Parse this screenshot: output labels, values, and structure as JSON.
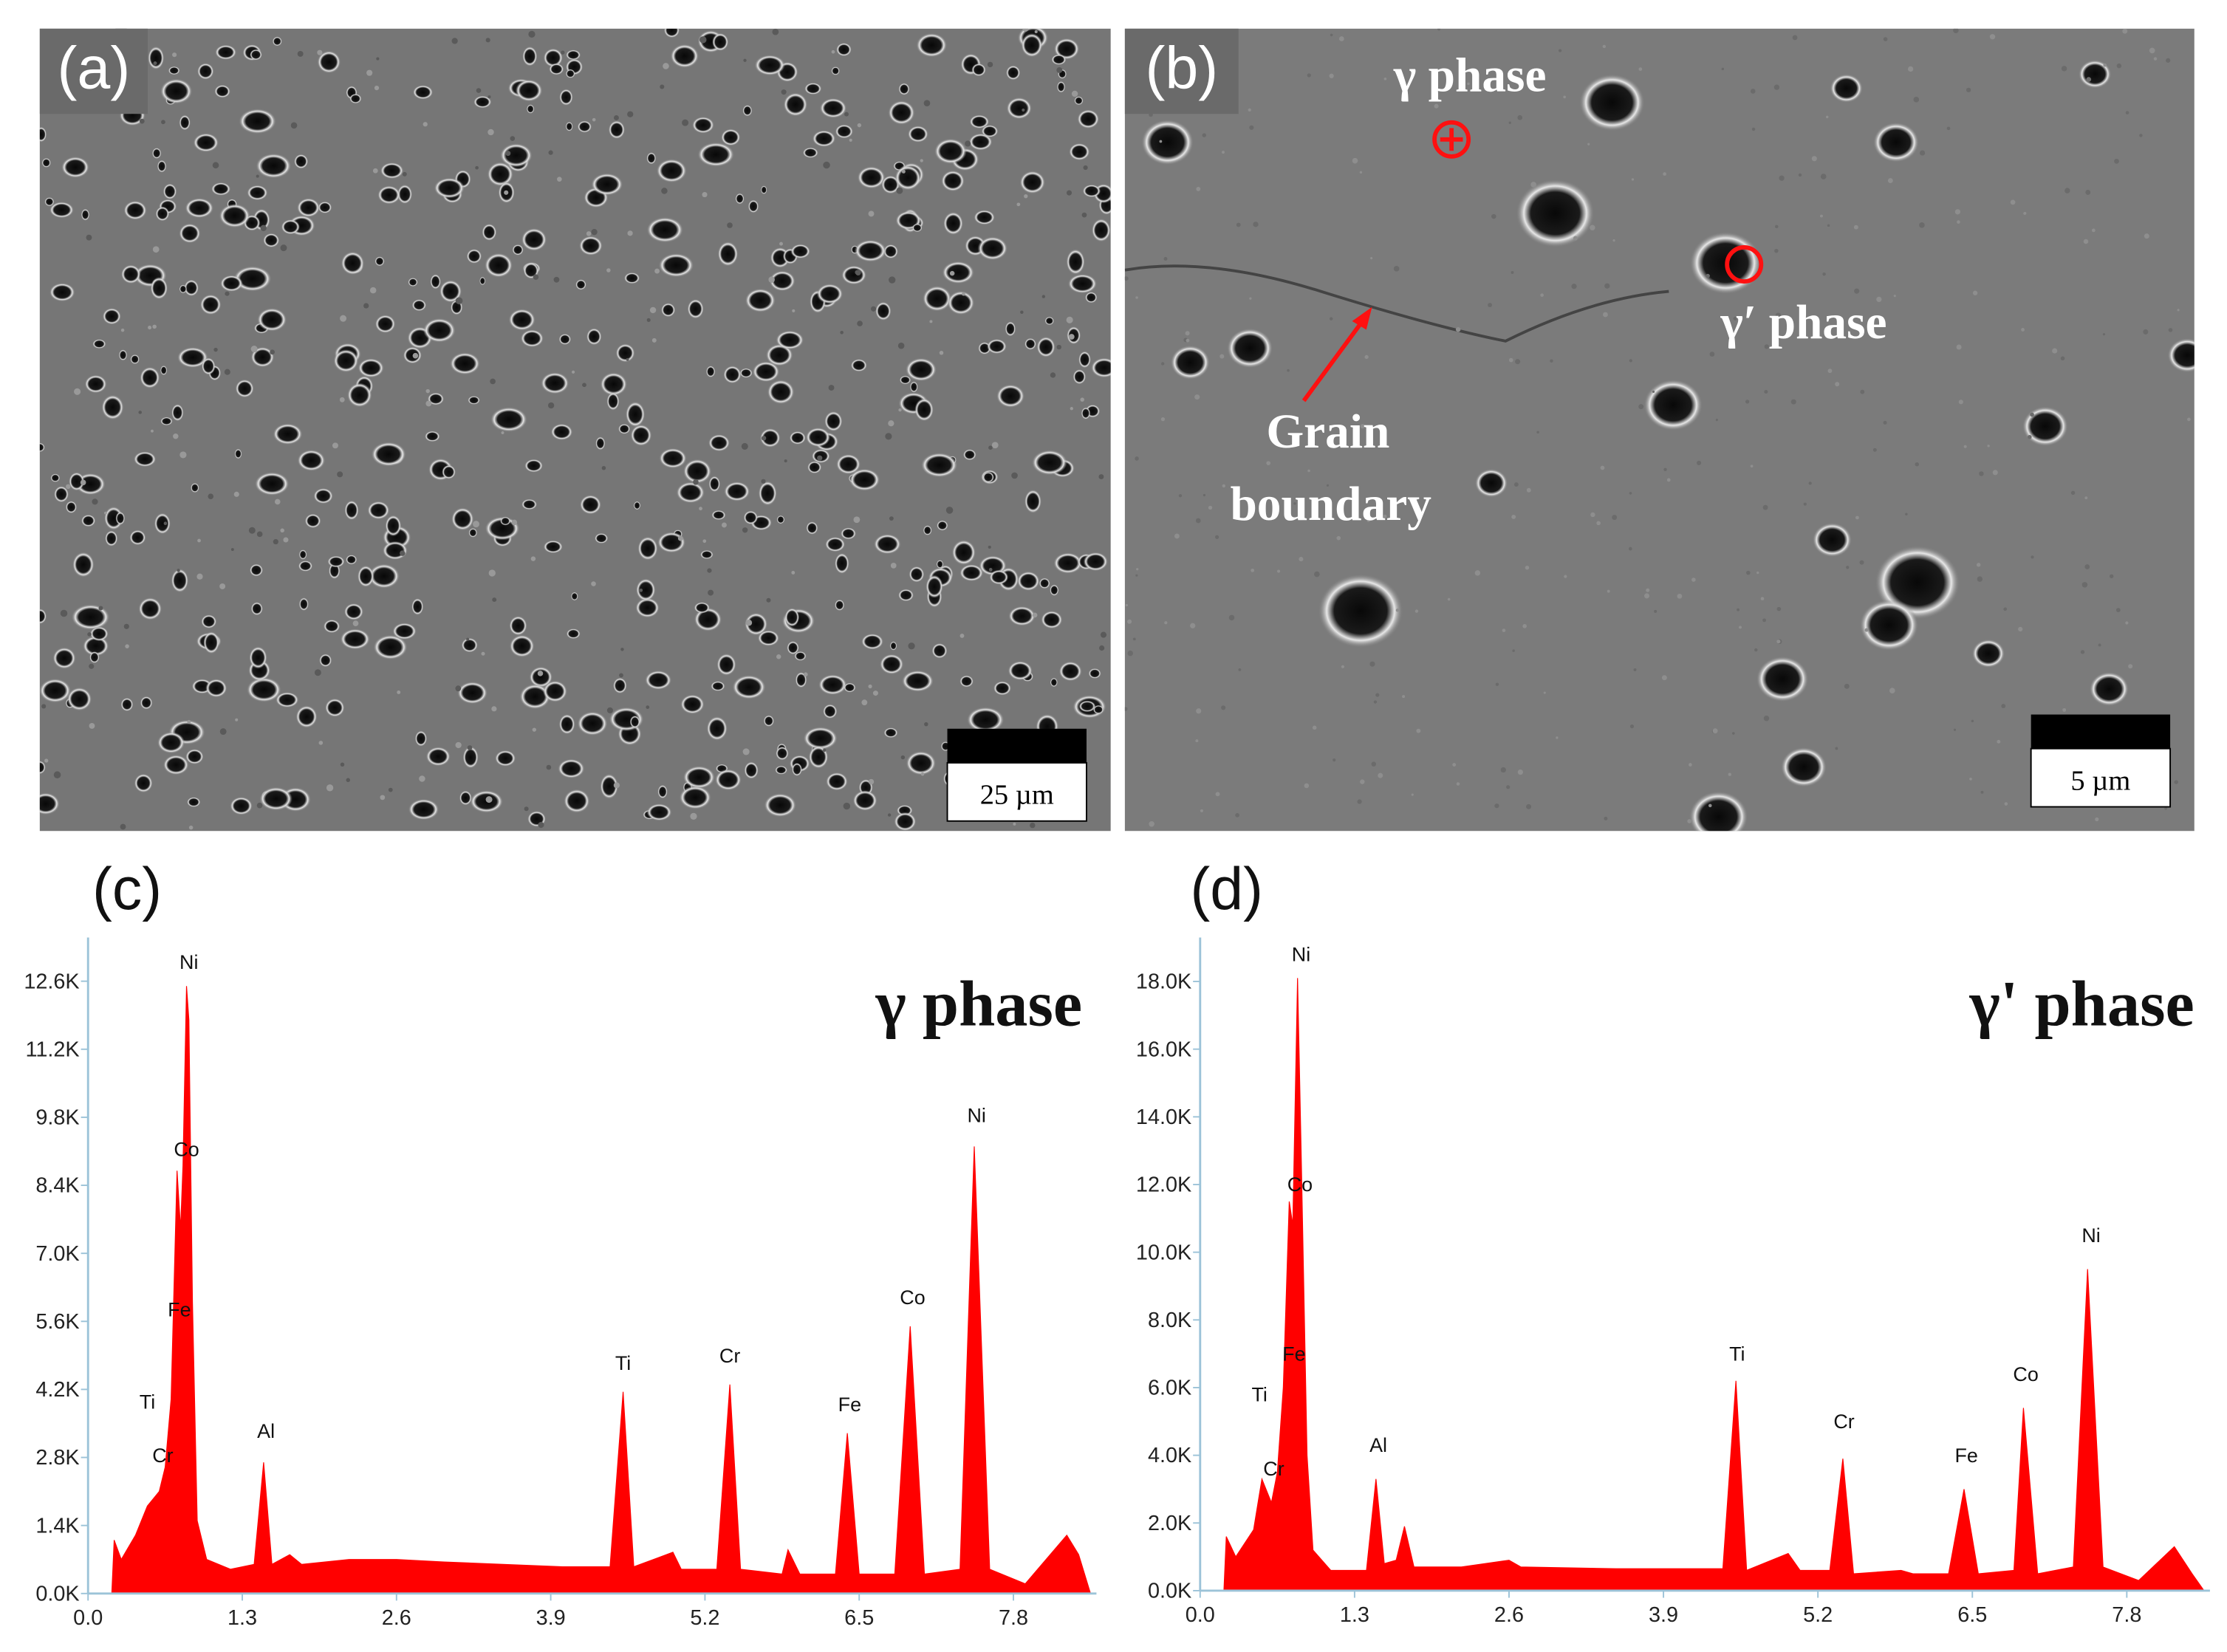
{
  "images": [
    {
      "label": "(a)",
      "scale_bar": "25 µm"
    },
    {
      "label": "(b)",
      "scale_bar": "5 µm",
      "phase_labels": [
        "γ  phase",
        "γ′  phase"
      ],
      "boundary_label": [
        "Grain",
        "boundary"
      ]
    }
  ],
  "chart_data": [
    {
      "type": "area",
      "panel_label": "(c)",
      "title": "γ  phase",
      "color": "#ff0000",
      "x": [
        0.2,
        0.22,
        0.28,
        0.4,
        0.5,
        0.6,
        0.65,
        0.7,
        0.75,
        0.78,
        0.8,
        0.83,
        0.85,
        0.88,
        0.92,
        1.0,
        1.2,
        1.4,
        1.48,
        1.55,
        1.7,
        1.8,
        2.2,
        2.6,
        3.0,
        3.5,
        4.0,
        4.4,
        4.51,
        4.6,
        4.93,
        5.0,
        5.3,
        5.41,
        5.5,
        5.85,
        5.9,
        6.0,
        6.3,
        6.4,
        6.5,
        6.8,
        6.93,
        7.05,
        7.35,
        7.47,
        7.6,
        7.9,
        8.25,
        8.35,
        8.45
      ],
      "values": [
        0,
        1100,
        700,
        1200,
        1800,
        2100,
        2600,
        4000,
        8700,
        7500,
        8800,
        12500,
        11800,
        6000,
        1500,
        700,
        500,
        600,
        2700,
        600,
        800,
        600,
        700,
        700,
        650,
        600,
        550,
        550,
        4150,
        550,
        850,
        500,
        500,
        4300,
        500,
        400,
        900,
        400,
        400,
        3300,
        400,
        400,
        5500,
        400,
        500,
        9200,
        500,
        200,
        1200,
        800,
        0
      ],
      "xlim": [
        0,
        8.5
      ],
      "xticks": [
        {
          "value": 0,
          "label": "0.0"
        },
        1.3,
        2.6,
        3.9,
        5.2,
        6.5,
        7.8
      ],
      "ylim": [
        0,
        13500
      ],
      "yticks": [
        {
          "value": 0,
          "label": "0.0K"
        },
        {
          "value": 1400,
          "label": "1.4K"
        },
        {
          "value": 2800,
          "label": "2.8K"
        },
        {
          "value": 4200,
          "label": "4.2K"
        },
        {
          "value": 5600,
          "label": "5.6K"
        },
        {
          "value": 7000,
          "label": "7.0K"
        },
        {
          "value": 8400,
          "label": "8.4K"
        },
        {
          "value": 9800,
          "label": "9.8K"
        },
        {
          "value": 11200,
          "label": "11.2K"
        },
        {
          "value": 12600,
          "label": "12.6K"
        }
      ],
      "annotations": [
        {
          "text": "Ni",
          "x": 0.85,
          "y": 12850
        },
        {
          "text": "Co",
          "x": 0.83,
          "y": 9000
        },
        {
          "text": "Fe",
          "x": 0.77,
          "y": 5700
        },
        {
          "text": "Ti",
          "x": 0.5,
          "y": 3800
        },
        {
          "text": "Cr",
          "x": 0.63,
          "y": 2700
        },
        {
          "text": "Al",
          "x": 1.5,
          "y": 3200
        },
        {
          "text": "Ti",
          "x": 4.51,
          "y": 4600
        },
        {
          "text": "Cr",
          "x": 5.41,
          "y": 4750
        },
        {
          "text": "Fe",
          "x": 6.42,
          "y": 3750
        },
        {
          "text": "Co",
          "x": 6.95,
          "y": 5950
        },
        {
          "text": "Ni",
          "x": 7.49,
          "y": 9700
        }
      ]
    },
    {
      "type": "area",
      "panel_label": "(d)",
      "title": "γ' phase",
      "color": "#ff0000",
      "x": [
        0.2,
        0.22,
        0.3,
        0.45,
        0.52,
        0.6,
        0.65,
        0.7,
        0.75,
        0.78,
        0.82,
        0.85,
        0.9,
        0.95,
        1.1,
        1.4,
        1.48,
        1.55,
        1.65,
        1.72,
        1.8,
        2.2,
        2.6,
        2.7,
        3.5,
        4.4,
        4.51,
        4.6,
        4.95,
        5.05,
        5.3,
        5.41,
        5.5,
        5.9,
        6.0,
        6.3,
        6.43,
        6.55,
        6.85,
        6.93,
        7.05,
        7.35,
        7.47,
        7.6,
        7.9,
        8.2,
        8.35,
        8.45
      ],
      "values": [
        0,
        1600,
        1000,
        1800,
        3300,
        2600,
        3500,
        6000,
        11500,
        10800,
        18100,
        13000,
        4000,
        1200,
        600,
        600,
        3300,
        800,
        900,
        1900,
        700,
        700,
        900,
        700,
        650,
        650,
        6200,
        600,
        1100,
        600,
        600,
        3900,
        500,
        600,
        500,
        500,
        3000,
        500,
        600,
        5400,
        500,
        700,
        9500,
        700,
        300,
        1300,
        500,
        0
      ],
      "xlim": [
        0,
        8.5
      ],
      "xticks": [
        {
          "value": 0,
          "label": "0.0"
        },
        1.3,
        2.6,
        3.9,
        5.2,
        6.5,
        7.8
      ],
      "ylim": [
        0,
        19300
      ],
      "yticks": [
        {
          "value": 0,
          "label": "0.0K"
        },
        {
          "value": 2000,
          "label": "2.0K"
        },
        {
          "value": 4000,
          "label": "4.0K"
        },
        {
          "value": 6000,
          "label": "6.0K"
        },
        {
          "value": 8000,
          "label": "8.0K"
        },
        {
          "value": 10000,
          "label": "10.0K"
        },
        {
          "value": 12000,
          "label": "12.0K"
        },
        {
          "value": 14000,
          "label": "14.0K"
        },
        {
          "value": 16000,
          "label": "16.0K"
        },
        {
          "value": 18000,
          "label": "18.0K"
        }
      ],
      "annotations": [
        {
          "text": "Ni",
          "x": 0.85,
          "y": 18600
        },
        {
          "text": "Co",
          "x": 0.84,
          "y": 11800
        },
        {
          "text": "Fe",
          "x": 0.79,
          "y": 6800
        },
        {
          "text": "Ti",
          "x": 0.5,
          "y": 5600
        },
        {
          "text": "Cr",
          "x": 0.62,
          "y": 3400
        },
        {
          "text": "Al",
          "x": 1.5,
          "y": 4100
        },
        {
          "text": "Ti",
          "x": 4.52,
          "y": 6800
        },
        {
          "text": "Cr",
          "x": 5.42,
          "y": 4800
        },
        {
          "text": "Fe",
          "x": 6.45,
          "y": 3800
        },
        {
          "text": "Co",
          "x": 6.95,
          "y": 6200
        },
        {
          "text": "Ni",
          "x": 7.5,
          "y": 10300
        }
      ]
    }
  ]
}
